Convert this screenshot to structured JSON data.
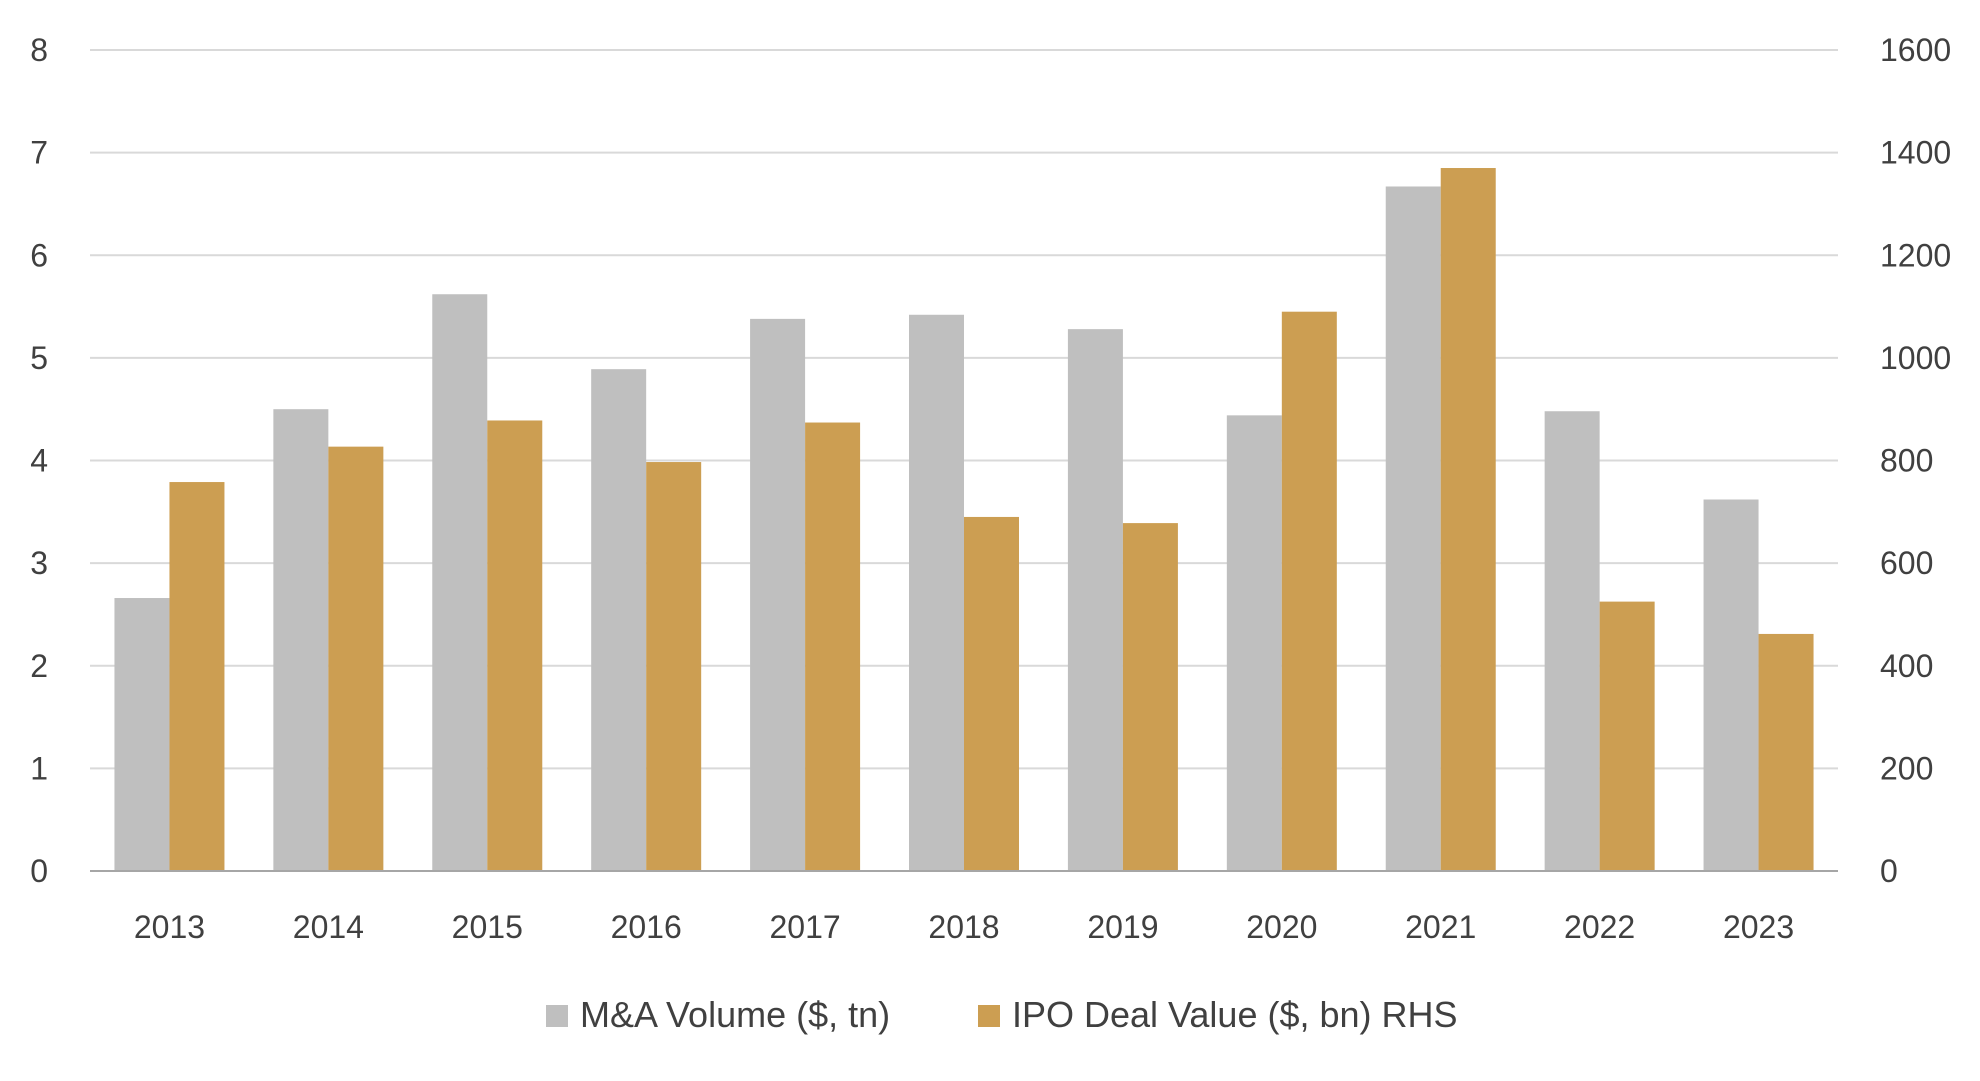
{
  "chart_data": {
    "type": "bar",
    "title": "",
    "xlabel": "",
    "ylabel": "",
    "y2label": "",
    "grid": true,
    "legend_position": "bottom",
    "categories": [
      "2013",
      "2014",
      "2015",
      "2016",
      "2017",
      "2018",
      "2019",
      "2020",
      "2021",
      "2022",
      "2023"
    ],
    "series": [
      {
        "name": "M&A Volume ($, tn)",
        "axis": "left",
        "color": "#bfbfbf",
        "values": [
          2.66,
          4.5,
          5.62,
          4.89,
          5.38,
          5.42,
          5.28,
          4.44,
          6.67,
          4.48,
          3.62
        ]
      },
      {
        "name": "IPO Deal Value ($, bn) RHS",
        "axis": "right",
        "color": "#cc9e52",
        "values": [
          758,
          827,
          878,
          797,
          874,
          690,
          678,
          1090,
          1370,
          525,
          462
        ]
      }
    ],
    "ylim": [
      0,
      8
    ],
    "y_ticks": [
      "0",
      "1",
      "2",
      "3",
      "4",
      "5",
      "6",
      "7",
      "8"
    ],
    "y2lim": [
      0,
      1600
    ],
    "y2_ticks": [
      "0",
      "200",
      "400",
      "600",
      "800",
      "1000",
      "1200",
      "1400",
      "1600"
    ]
  }
}
